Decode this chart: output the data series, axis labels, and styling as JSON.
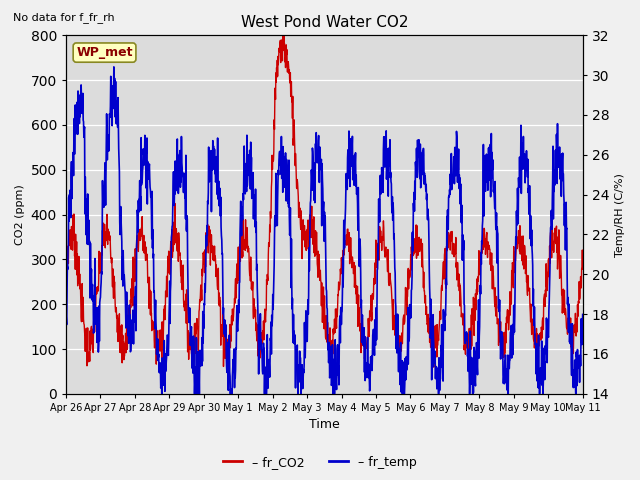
{
  "title": "West Pond Water CO2",
  "subtitle": "No data for f_fr_rh",
  "ylabel_left": "CO2 (ppm)",
  "ylabel_right": "Temp/RH (C/%)",
  "xlabel": "Time",
  "ylim_left": [
    0,
    800
  ],
  "ylim_right": [
    14,
    32
  ],
  "yticks_left": [
    0,
    100,
    200,
    300,
    400,
    500,
    600,
    700,
    800
  ],
  "yticks_right": [
    14,
    16,
    18,
    20,
    22,
    24,
    26,
    28,
    30,
    32
  ],
  "fig_bg_color": "#f0f0f0",
  "plot_bg_color": "#dcdcdc",
  "line_color_co2": "#cc0000",
  "line_color_temp": "#0000cc",
  "legend_label_co2": "fr_CO2",
  "legend_label_temp": "fr_temp",
  "legend_box_label": "WP_met",
  "x_tick_labels": [
    "Apr 26",
    "Apr 27",
    "Apr 28",
    "Apr 29",
    "Apr 30",
    "May 1",
    "May 2",
    "May 3",
    "May 4",
    "May 5",
    "May 6",
    "May 7",
    "May 8",
    "May 9",
    "May 10",
    "May 11"
  ],
  "duration_days": 15
}
